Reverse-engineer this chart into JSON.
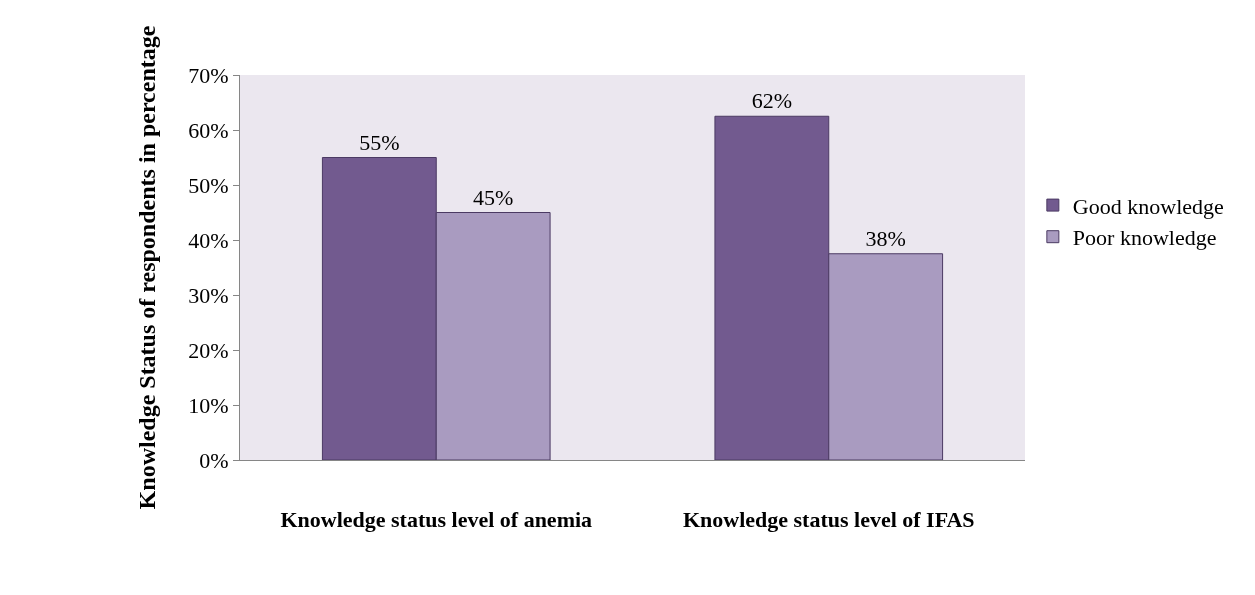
{
  "chart_data": {
    "type": "bar",
    "ylabel": "Knowledge Status of respondents in percentage",
    "categories": [
      "Knowledge status level of anemia",
      "Knowledge status level of IFAS"
    ],
    "series": [
      {
        "name": "Good knowledge",
        "color": "#725a8f",
        "values": [
          55,
          62.5
        ],
        "value_labels": [
          "55%",
          "62%"
        ]
      },
      {
        "name": "Poor knowledge",
        "color": "#a99bc0",
        "values": [
          45,
          37.5
        ],
        "value_labels": [
          "45%",
          "38%"
        ]
      }
    ],
    "ylim": [
      0,
      70
    ],
    "yticks": [
      {
        "value": 0,
        "label": "0%"
      },
      {
        "value": 10,
        "label": "10%"
      },
      {
        "value": 20,
        "label": "20%"
      },
      {
        "value": 30,
        "label": "30%"
      },
      {
        "value": 40,
        "label": "40%"
      },
      {
        "value": 50,
        "label": "50%"
      },
      {
        "value": 60,
        "label": "60%"
      },
      {
        "value": 70,
        "label": "70%"
      }
    ],
    "grid": false,
    "legend": "right"
  }
}
